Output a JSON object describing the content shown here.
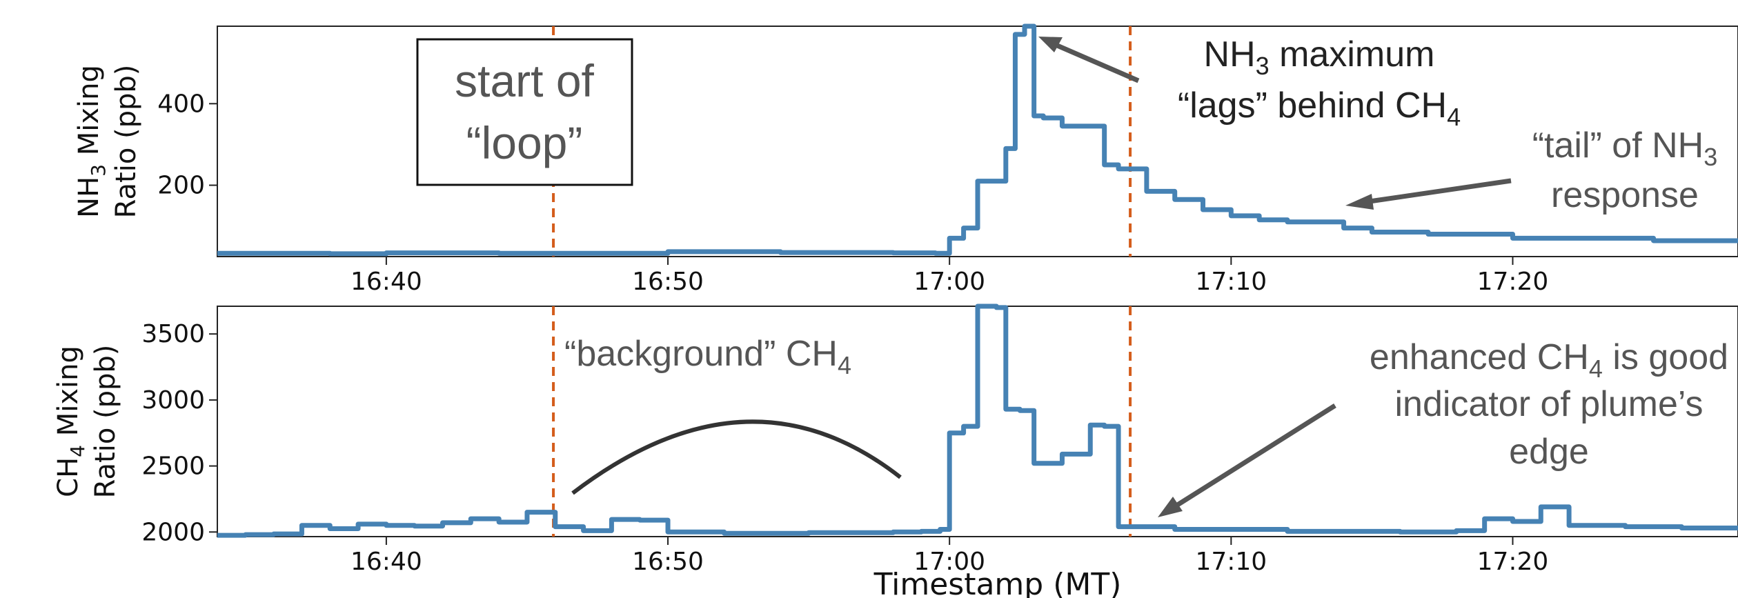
{
  "figure": {
    "x_axis_label": "Timestamp (MT)",
    "x_ticks": [
      "16:40",
      "16:50",
      "17:00",
      "17:10",
      "17:20"
    ],
    "vertical_markers": [
      "16:45:56",
      "17:06:25"
    ],
    "marker_color": "#d45d1c",
    "series_color": "#4682b4"
  },
  "annotations": {
    "box_line1": "start of",
    "box_line2": "“loop”",
    "nh3_lag_line1": "NH",
    "nh3_lag_line1_sub": "3",
    "nh3_lag_line1_rest": " maximum",
    "nh3_lag_line2": "“lags” behind CH",
    "nh3_lag_line2_sub": "4",
    "tail_line1": "“tail” of NH",
    "tail_line1_sub": "3",
    "tail_line2": "response",
    "background_text": "“background” CH",
    "background_sub": "4",
    "edge_line1": "enhanced CH",
    "edge_line1_sub": "4",
    "edge_line1_rest": " is good",
    "edge_line2": "indicator of plume’s",
    "edge_line3": "edge"
  },
  "chart_data": [
    {
      "type": "line",
      "ylabel_line1": "NH",
      "ylabel_sub": "3",
      "ylabel_rest": " Mixing",
      "ylabel_line2": "Ratio (ppb)",
      "y_ticks": [
        "200",
        "400"
      ],
      "xlim": [
        "16:34",
        "17:28"
      ],
      "ylim": [
        25,
        590
      ],
      "x": [
        "16:34",
        "16:38",
        "16:40",
        "16:44",
        "16:46",
        "16:50",
        "16:54",
        "16:58",
        "16:59",
        "16:59:30",
        "17:00",
        "17:00:30",
        "17:01",
        "17:02",
        "17:02:20",
        "17:02:40",
        "17:03",
        "17:03:20",
        "17:04",
        "17:04:30",
        "17:05",
        "17:05:30",
        "17:06",
        "17:07",
        "17:08",
        "17:09",
        "17:10",
        "17:11",
        "17:12",
        "17:13",
        "17:14",
        "17:15",
        "17:17",
        "17:20",
        "17:25",
        "17:28"
      ],
      "values": [
        33,
        32,
        34,
        33,
        33,
        37,
        35,
        34,
        34,
        33,
        70,
        95,
        210,
        290,
        570,
        590,
        370,
        365,
        345,
        345,
        345,
        250,
        240,
        185,
        165,
        140,
        125,
        115,
        110,
        110,
        95,
        85,
        80,
        70,
        64,
        62
      ]
    },
    {
      "type": "line",
      "ylabel_line1": "CH",
      "ylabel_sub": "4",
      "ylabel_rest": " Mixing",
      "ylabel_line2": "Ratio (ppb)",
      "y_ticks": [
        "2000",
        "2500",
        "3000",
        "3500"
      ],
      "xlim": [
        "16:34",
        "17:28"
      ],
      "ylim": [
        1965,
        3710
      ],
      "x": [
        "16:34",
        "16:35",
        "16:36",
        "16:37",
        "16:38",
        "16:39",
        "16:40",
        "16:41",
        "16:42",
        "16:43",
        "16:44",
        "16:45",
        "16:46",
        "16:47",
        "16:48",
        "16:49",
        "16:50",
        "16:52",
        "16:55",
        "16:58",
        "16:59",
        "16:59:40",
        "17:00",
        "17:00:30",
        "17:01",
        "17:01:40",
        "17:02",
        "17:02:30",
        "17:03",
        "17:04",
        "17:05",
        "17:05:30",
        "17:06",
        "17:08",
        "17:12",
        "17:16",
        "17:18",
        "17:19",
        "17:20",
        "17:21",
        "17:22",
        "17:24",
        "17:26",
        "17:28"
      ],
      "values": [
        1975,
        1980,
        1985,
        2050,
        2025,
        2060,
        2050,
        2045,
        2070,
        2100,
        2075,
        2150,
        2040,
        2010,
        2095,
        2090,
        2000,
        1990,
        1995,
        2000,
        2005,
        2020,
        2750,
        2800,
        3710,
        3700,
        2930,
        2920,
        2520,
        2590,
        2810,
        2800,
        2040,
        2020,
        2005,
        2000,
        2010,
        2100,
        2080,
        2190,
        2050,
        2040,
        2030,
        2030
      ]
    }
  ]
}
